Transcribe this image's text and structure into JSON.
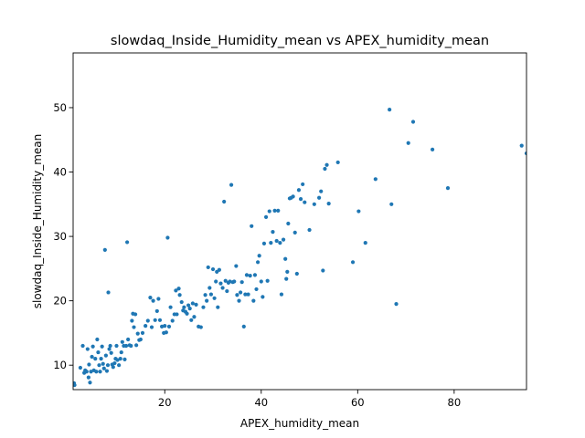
{
  "chart_data": {
    "type": "scatter",
    "title": "slowdaq_Inside_Humidity_mean vs APEX_humidity_mean",
    "xlabel": "APEX_humidity_mean",
    "ylabel": "slowdaq_Inside_Humidity_mean",
    "xlim": [
      1,
      95
    ],
    "ylim": [
      6.2,
      58.5
    ],
    "xticks": [
      20,
      40,
      60,
      80
    ],
    "yticks": [
      10,
      20,
      30,
      40,
      50
    ],
    "grid": false,
    "legend": "none",
    "color": "#1f77b4",
    "series": [
      {
        "points": [
          [
            1.2,
            7.2
          ],
          [
            1.3,
            6.9
          ],
          [
            2.5,
            9.6
          ],
          [
            3.0,
            13.0
          ],
          [
            3.3,
            8.8
          ],
          [
            3.5,
            9.2
          ],
          [
            3.8,
            9.0
          ],
          [
            4.0,
            12.5
          ],
          [
            4.2,
            8.1
          ],
          [
            4.3,
            10.1
          ],
          [
            4.5,
            7.3
          ],
          [
            4.7,
            9.0
          ],
          [
            4.9,
            11.3
          ],
          [
            5.1,
            12.9
          ],
          [
            5.3,
            9.2
          ],
          [
            5.6,
            11.0
          ],
          [
            5.8,
            9.0
          ],
          [
            6.0,
            14.0
          ],
          [
            6.2,
            12.0
          ],
          [
            6.4,
            10.0
          ],
          [
            6.6,
            9.0
          ],
          [
            6.8,
            11.0
          ],
          [
            7.0,
            12.9
          ],
          [
            7.2,
            10.2
          ],
          [
            7.4,
            9.5
          ],
          [
            7.6,
            27.9
          ],
          [
            7.8,
            11.5
          ],
          [
            8.0,
            9.1
          ],
          [
            8.2,
            10.0
          ],
          [
            8.3,
            21.3
          ],
          [
            8.5,
            12.5
          ],
          [
            8.7,
            13.0
          ],
          [
            8.9,
            11.9
          ],
          [
            9.1,
            10.1
          ],
          [
            9.3,
            9.7
          ],
          [
            9.6,
            10.3
          ],
          [
            9.8,
            11.0
          ],
          [
            10.0,
            13.0
          ],
          [
            10.2,
            10.8
          ],
          [
            10.5,
            10.0
          ],
          [
            10.8,
            11.0
          ],
          [
            11.0,
            12.0
          ],
          [
            11.2,
            13.6
          ],
          [
            11.5,
            13.0
          ],
          [
            11.7,
            10.9
          ],
          [
            12.0,
            13.0
          ],
          [
            12.2,
            29.1
          ],
          [
            12.4,
            14.0
          ],
          [
            12.7,
            13.1
          ],
          [
            13.0,
            13.0
          ],
          [
            13.2,
            16.9
          ],
          [
            13.4,
            18.0
          ],
          [
            13.6,
            15.9
          ],
          [
            13.9,
            17.9
          ],
          [
            14.1,
            13.1
          ],
          [
            14.4,
            14.9
          ],
          [
            14.7,
            13.9
          ],
          [
            15.0,
            14.0
          ],
          [
            15.4,
            15.0
          ],
          [
            16.0,
            16.1
          ],
          [
            16.5,
            16.9
          ],
          [
            17.0,
            20.5
          ],
          [
            17.3,
            15.9
          ],
          [
            17.6,
            20.0
          ],
          [
            18.0,
            17.0
          ],
          [
            18.4,
            18.4
          ],
          [
            18.7,
            20.3
          ],
          [
            19.0,
            17.0
          ],
          [
            19.4,
            16.0
          ],
          [
            19.8,
            15.0
          ],
          [
            20.0,
            16.1
          ],
          [
            20.3,
            15.1
          ],
          [
            20.6,
            29.8
          ],
          [
            20.9,
            16.0
          ],
          [
            21.2,
            19.0
          ],
          [
            21.6,
            16.9
          ],
          [
            22.0,
            17.9
          ],
          [
            22.3,
            21.6
          ],
          [
            22.5,
            17.9
          ],
          [
            22.9,
            21.9
          ],
          [
            23.1,
            20.9
          ],
          [
            23.5,
            19.8
          ],
          [
            23.8,
            18.5
          ],
          [
            24.0,
            19.0
          ],
          [
            24.3,
            18.3
          ],
          [
            24.6,
            18.0
          ],
          [
            24.9,
            19.3
          ],
          [
            25.2,
            18.8
          ],
          [
            25.5,
            17.0
          ],
          [
            25.8,
            19.6
          ],
          [
            26.1,
            17.5
          ],
          [
            26.5,
            19.4
          ],
          [
            27.0,
            16.0
          ],
          [
            27.5,
            15.9
          ],
          [
            28.0,
            19.0
          ],
          [
            28.4,
            20.9
          ],
          [
            28.7,
            20.0
          ],
          [
            29.0,
            25.2
          ],
          [
            29.3,
            22.0
          ],
          [
            29.6,
            21.0
          ],
          [
            30.0,
            24.9
          ],
          [
            30.3,
            20.4
          ],
          [
            30.6,
            23.0
          ],
          [
            30.8,
            24.5
          ],
          [
            31.0,
            19.0
          ],
          [
            31.3,
            24.8
          ],
          [
            31.6,
            22.7
          ],
          [
            32.0,
            22.0
          ],
          [
            32.3,
            35.4
          ],
          [
            32.6,
            23.1
          ],
          [
            32.9,
            21.5
          ],
          [
            33.2,
            22.8
          ],
          [
            33.5,
            23.0
          ],
          [
            33.8,
            38.0
          ],
          [
            34.1,
            22.9
          ],
          [
            34.4,
            23.0
          ],
          [
            34.8,
            25.4
          ],
          [
            35.0,
            20.9
          ],
          [
            35.4,
            20.0
          ],
          [
            35.7,
            21.3
          ],
          [
            36.0,
            22.9
          ],
          [
            36.4,
            16.0
          ],
          [
            36.7,
            21.0
          ],
          [
            37.0,
            24.0
          ],
          [
            37.3,
            21.0
          ],
          [
            37.7,
            23.9
          ],
          [
            38.0,
            31.6
          ],
          [
            38.4,
            20.0
          ],
          [
            38.7,
            24.0
          ],
          [
            39.0,
            21.8
          ],
          [
            39.3,
            26.0
          ],
          [
            39.6,
            27.0
          ],
          [
            40.0,
            23.0
          ],
          [
            40.3,
            20.6
          ],
          [
            40.6,
            28.9
          ],
          [
            41.0,
            33.0
          ],
          [
            41.3,
            23.1
          ],
          [
            41.7,
            33.9
          ],
          [
            42.0,
            29.0
          ],
          [
            42.4,
            30.7
          ],
          [
            42.8,
            34.0
          ],
          [
            43.2,
            29.3
          ],
          [
            43.5,
            34.0
          ],
          [
            43.9,
            29.0
          ],
          [
            44.2,
            21.0
          ],
          [
            44.6,
            29.5
          ],
          [
            45.0,
            26.5
          ],
          [
            45.2,
            23.4
          ],
          [
            45.4,
            24.5
          ],
          [
            45.6,
            32.0
          ],
          [
            45.9,
            35.9
          ],
          [
            46.2,
            36.0
          ],
          [
            46.6,
            36.2
          ],
          [
            47.0,
            30.6
          ],
          [
            47.4,
            24.2
          ],
          [
            47.8,
            37.2
          ],
          [
            48.2,
            35.8
          ],
          [
            48.6,
            38.1
          ],
          [
            49.0,
            35.3
          ],
          [
            50.0,
            31.0
          ],
          [
            51.0,
            35.0
          ],
          [
            52.0,
            36.0
          ],
          [
            52.4,
            37.0
          ],
          [
            52.8,
            24.7
          ],
          [
            53.2,
            40.5
          ],
          [
            53.6,
            41.1
          ],
          [
            54.0,
            35.1
          ],
          [
            55.9,
            41.5
          ],
          [
            59.0,
            26.0
          ],
          [
            60.2,
            33.9
          ],
          [
            61.6,
            29.0
          ],
          [
            63.7,
            38.9
          ],
          [
            66.6,
            49.7
          ],
          [
            67.0,
            35.0
          ],
          [
            68.0,
            19.5
          ],
          [
            70.5,
            44.5
          ],
          [
            71.5,
            47.8
          ],
          [
            75.5,
            43.5
          ],
          [
            78.7,
            37.5
          ],
          [
            94.0,
            44.1
          ],
          [
            95.0,
            42.9
          ]
        ]
      }
    ]
  }
}
